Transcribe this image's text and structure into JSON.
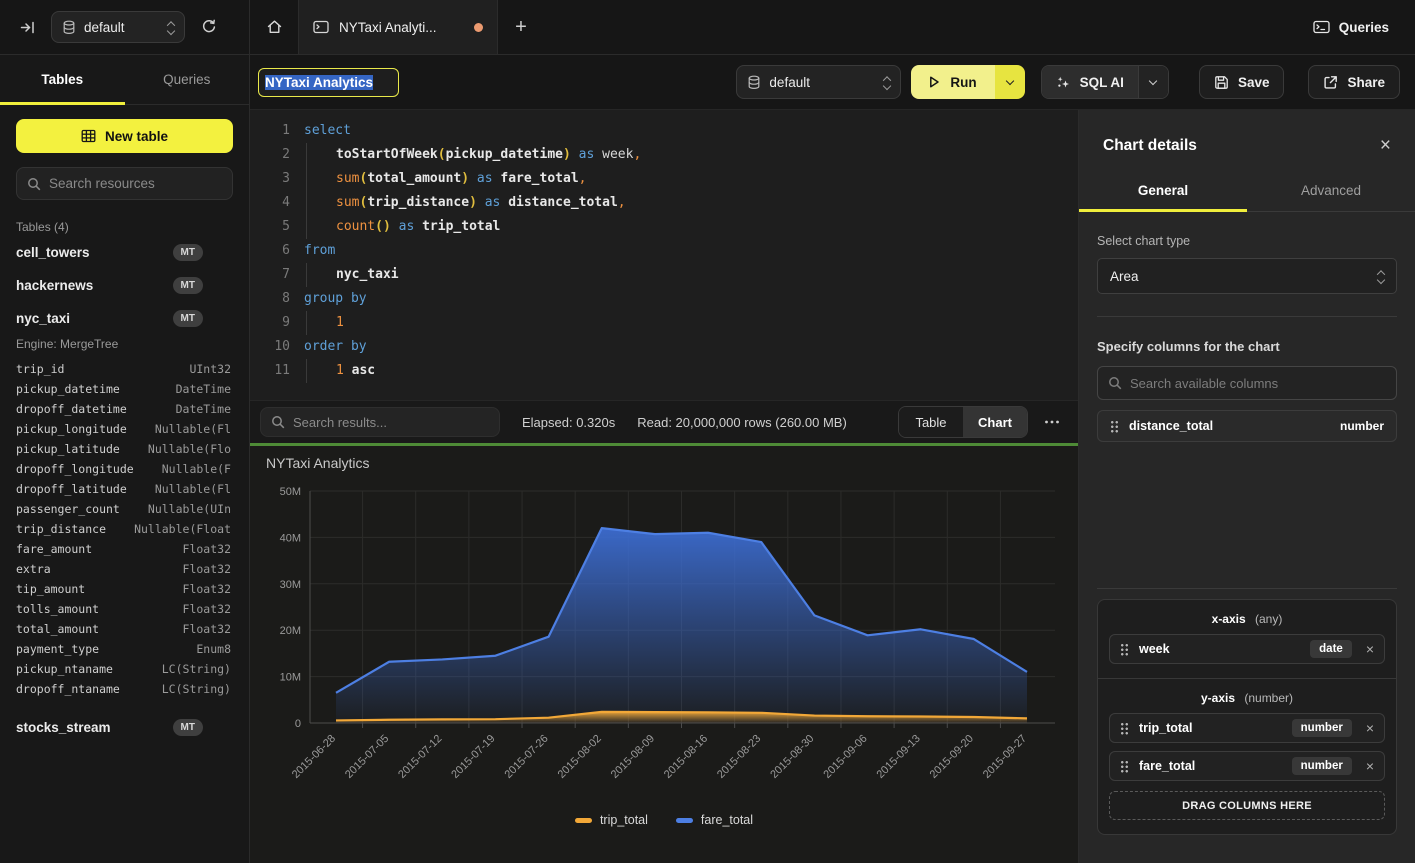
{
  "colors": {
    "accent_yellow": "#f0ee3c",
    "run_yellow": "#f2f08c",
    "status_green": "#4e8b36",
    "tab_dot_orange": "#eb9a70",
    "series_trip_total": "#eda63a",
    "series_fare_total": "#4472d8"
  },
  "topbar": {
    "database_selector": {
      "value": "default"
    },
    "tabs": [
      {
        "label": "NYTaxi Analyti...",
        "modified": true
      }
    ],
    "queries_label": "Queries"
  },
  "sidebar": {
    "tabs": [
      {
        "label": "Tables",
        "active": true
      },
      {
        "label": "Queries",
        "active": false
      }
    ],
    "new_table_label": "New table",
    "search_placeholder": "Search resources",
    "section_label": "Tables (4)",
    "tables": [
      {
        "name": "cell_towers",
        "badge": "MT"
      },
      {
        "name": "hackernews",
        "badge": "MT"
      },
      {
        "name": "nyc_taxi",
        "badge": "MT",
        "engine": "Engine: MergeTree",
        "columns": [
          {
            "name": "trip_id",
            "type": "UInt32"
          },
          {
            "name": "pickup_datetime",
            "type": "DateTime"
          },
          {
            "name": "dropoff_datetime",
            "type": "DateTime"
          },
          {
            "name": "pickup_longitude",
            "type": "Nullable(Fl"
          },
          {
            "name": "pickup_latitude",
            "type": "Nullable(Flo"
          },
          {
            "name": "dropoff_longitude",
            "type": "Nullable(F"
          },
          {
            "name": "dropoff_latitude",
            "type": "Nullable(Fl"
          },
          {
            "name": "passenger_count",
            "type": "Nullable(UIn"
          },
          {
            "name": "trip_distance",
            "type": "Nullable(Float"
          },
          {
            "name": "fare_amount",
            "type": "Float32"
          },
          {
            "name": "extra",
            "type": "Float32"
          },
          {
            "name": "tip_amount",
            "type": "Float32"
          },
          {
            "name": "tolls_amount",
            "type": "Float32"
          },
          {
            "name": "total_amount",
            "type": "Float32"
          },
          {
            "name": "payment_type",
            "type": "Enum8"
          },
          {
            "name": "pickup_ntaname",
            "type": "LC(String)"
          },
          {
            "name": "dropoff_ntaname",
            "type": "LC(String)"
          }
        ]
      },
      {
        "name": "stocks_stream",
        "badge": "MT"
      }
    ]
  },
  "toolbar": {
    "title_value": "NYTaxi Analytics",
    "database_selector": {
      "value": "default"
    },
    "run_label": "Run",
    "sql_ai_label": "SQL AI",
    "save_label": "Save",
    "share_label": "Share"
  },
  "editor": {
    "lines": [
      {
        "n": "1",
        "tokens": [
          [
            "kw",
            "select"
          ]
        ]
      },
      {
        "n": "2",
        "tokens": [
          [
            "ind",
            ""
          ],
          [
            "id",
            "toStartOfWeek"
          ],
          [
            "pr",
            "("
          ],
          [
            "id",
            "pickup_datetime"
          ],
          [
            "pr",
            ")"
          ],
          [
            "pl",
            " "
          ],
          [
            "kw",
            "as"
          ],
          [
            "pl",
            " "
          ],
          [
            "al",
            "week"
          ],
          [
            "num",
            ","
          ]
        ]
      },
      {
        "n": "3",
        "tokens": [
          [
            "ind",
            ""
          ],
          [
            "fn",
            "sum"
          ],
          [
            "pr",
            "("
          ],
          [
            "id",
            "total_amount"
          ],
          [
            "pr",
            ")"
          ],
          [
            "pl",
            " "
          ],
          [
            "kw",
            "as"
          ],
          [
            "pl",
            " "
          ],
          [
            "id",
            "fare_total"
          ],
          [
            "num",
            ","
          ]
        ]
      },
      {
        "n": "4",
        "tokens": [
          [
            "ind",
            ""
          ],
          [
            "fn",
            "sum"
          ],
          [
            "pr",
            "("
          ],
          [
            "id",
            "trip_distance"
          ],
          [
            "pr",
            ")"
          ],
          [
            "pl",
            " "
          ],
          [
            "kw",
            "as"
          ],
          [
            "pl",
            " "
          ],
          [
            "id",
            "distance_total"
          ],
          [
            "num",
            ","
          ]
        ]
      },
      {
        "n": "5",
        "tokens": [
          [
            "ind",
            ""
          ],
          [
            "fn",
            "count"
          ],
          [
            "pr",
            "()"
          ],
          [
            "pl",
            " "
          ],
          [
            "kw",
            "as"
          ],
          [
            "pl",
            " "
          ],
          [
            "id",
            "trip_total"
          ]
        ]
      },
      {
        "n": "6",
        "tokens": [
          [
            "kw",
            "from"
          ]
        ]
      },
      {
        "n": "7",
        "tokens": [
          [
            "ind",
            ""
          ],
          [
            "id",
            "nyc_taxi"
          ]
        ]
      },
      {
        "n": "8",
        "tokens": [
          [
            "kw",
            "group by"
          ]
        ]
      },
      {
        "n": "9",
        "tokens": [
          [
            "ind",
            ""
          ],
          [
            "num",
            "1"
          ]
        ]
      },
      {
        "n": "10",
        "tokens": [
          [
            "kw",
            "order by"
          ]
        ]
      },
      {
        "n": "11",
        "tokens": [
          [
            "ind",
            ""
          ],
          [
            "num",
            "1"
          ],
          [
            "pl",
            " "
          ],
          [
            "id",
            "asc"
          ]
        ]
      }
    ]
  },
  "results_bar": {
    "search_placeholder": "Search results...",
    "elapsed": "Elapsed: 0.320s",
    "read": "Read: 20,000,000 rows (260.00 MB)",
    "view_toggle": [
      {
        "label": "Table",
        "active": false
      },
      {
        "label": "Chart",
        "active": true
      }
    ]
  },
  "chart_data": {
    "type": "area",
    "title": "NYTaxi Analytics",
    "x": [
      "2015-06-28",
      "2015-07-05",
      "2015-07-12",
      "2015-07-19",
      "2015-07-26",
      "2015-08-02",
      "2015-08-09",
      "2015-08-16",
      "2015-08-23",
      "2015-08-30",
      "2015-09-06",
      "2015-09-13",
      "2015-09-20",
      "2015-09-27"
    ],
    "series": [
      {
        "name": "trip_total",
        "color": "#eda63a",
        "line": "#f2a838",
        "values": [
          550000,
          700000,
          780000,
          820000,
          1150000,
          2400000,
          2350000,
          2300000,
          2200000,
          1600000,
          1450000,
          1400000,
          1300000,
          1000000
        ]
      },
      {
        "name": "fare_total",
        "color": "#3c6cd0",
        "line": "#4d7fe3",
        "values": [
          6500000,
          13200000,
          13700000,
          14500000,
          18600000,
          42000000,
          40700000,
          41000000,
          39000000,
          23200000,
          18900000,
          20200000,
          18100000,
          11000000
        ]
      }
    ],
    "ylim": [
      0,
      50000000
    ],
    "y_ticks": [
      {
        "v": 0,
        "label": "0"
      },
      {
        "v": 10000000,
        "label": "10M"
      },
      {
        "v": 20000000,
        "label": "20M"
      },
      {
        "v": 30000000,
        "label": "30M"
      },
      {
        "v": 40000000,
        "label": "40M"
      },
      {
        "v": 50000000,
        "label": "50M"
      }
    ],
    "grid": true,
    "legend_position": "bottom"
  },
  "panel": {
    "title": "Chart details",
    "tabs": [
      {
        "label": "General",
        "active": true
      },
      {
        "label": "Advanced",
        "active": false
      }
    ],
    "chart_type_label": "Select chart type",
    "chart_type_value": "Area",
    "columns_label": "Specify columns for the chart",
    "search_placeholder": "Search available columns",
    "available_columns": [
      {
        "name": "distance_total",
        "type": "number"
      }
    ],
    "x_axis": {
      "label": "x-axis",
      "hint": "(any)",
      "items": [
        {
          "name": "week",
          "type": "date"
        }
      ]
    },
    "y_axis": {
      "label": "y-axis",
      "hint": "(number)",
      "items": [
        {
          "name": "trip_total",
          "type": "number"
        },
        {
          "name": "fare_total",
          "type": "number"
        }
      ]
    },
    "drop_zone_label": "DRAG COLUMNS HERE"
  }
}
